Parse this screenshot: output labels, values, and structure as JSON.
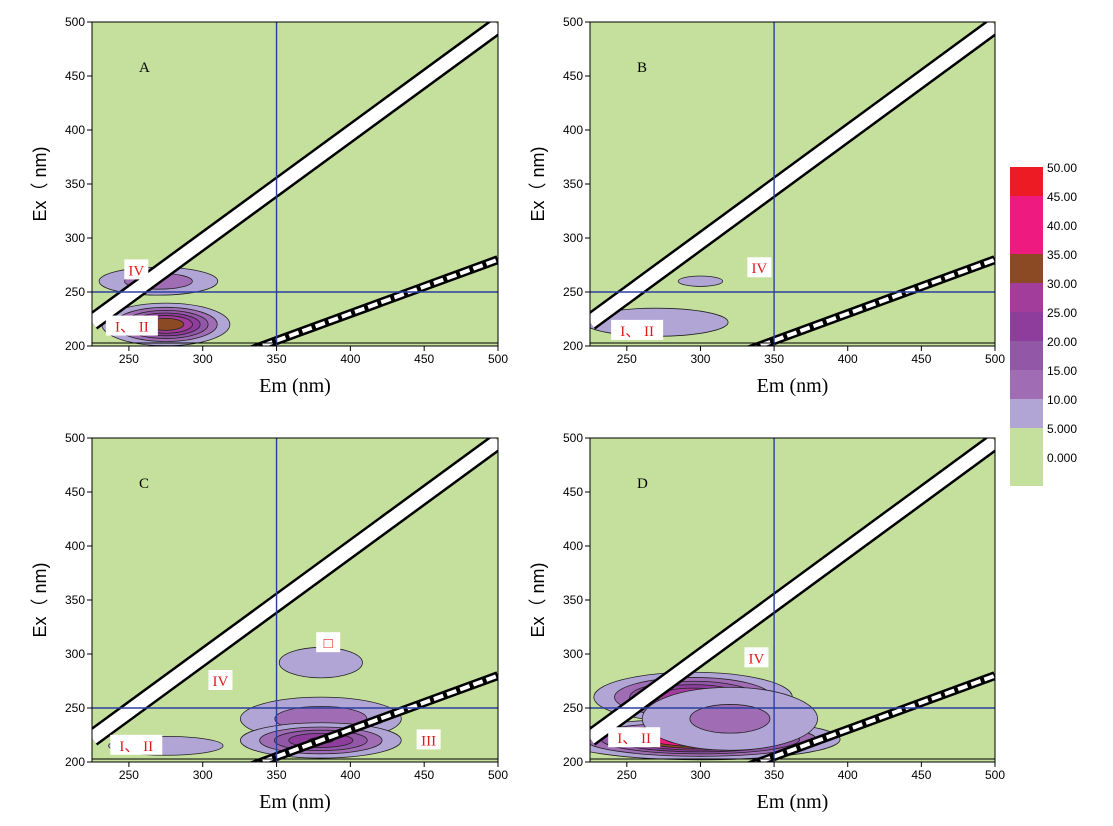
{
  "chart_data": [
    {
      "type": "contour",
      "panel_label": "A",
      "xlabel": "Em (nm)",
      "ylabel": "Ex（ nm)",
      "xlim": [
        225,
        500
      ],
      "ylim": [
        200,
        500
      ],
      "x_ticks": [
        "250",
        "300",
        "350",
        "400",
        "450",
        "500"
      ],
      "y_ticks": [
        "200",
        "250",
        "300",
        "350",
        "400",
        "450",
        "500"
      ],
      "divider_lines": {
        "em": 350,
        "ex": 250
      },
      "regions": [
        {
          "label": "IV",
          "em": 255,
          "ex": 270
        },
        {
          "label": "I、 II",
          "em": 252,
          "ex": 218
        }
      ],
      "peaks": [
        {
          "em": 275,
          "ex": 220,
          "level": 35,
          "sx": 22,
          "sy": 10
        },
        {
          "em": 270,
          "ex": 260,
          "level": 14,
          "sx": 28,
          "sy": 9
        }
      ]
    },
    {
      "type": "contour",
      "panel_label": "B",
      "xlabel": "Em (nm)",
      "ylabel": "Ex（ nm)",
      "xlim": [
        225,
        500
      ],
      "ylim": [
        200,
        500
      ],
      "x_ticks": [
        "250",
        "300",
        "350",
        "400",
        "450",
        "500"
      ],
      "y_ticks": [
        "200",
        "250",
        "300",
        "350",
        "400",
        "450",
        "500"
      ],
      "divider_lines": {
        "em": 350,
        "ex": 250
      },
      "regions": [
        {
          "label": "IV",
          "em": 340,
          "ex": 272
        },
        {
          "label": "I、 II",
          "em": 257,
          "ex": 214
        }
      ],
      "peaks": [
        {
          "em": 270,
          "ex": 222,
          "level": 9,
          "sx": 45,
          "sy": 12
        },
        {
          "em": 300,
          "ex": 260,
          "level": 6,
          "sx": 25,
          "sy": 8
        }
      ]
    },
    {
      "type": "contour",
      "panel_label": "C",
      "xlabel": "Em (nm)",
      "ylabel": "Ex（ nm)",
      "xlim": [
        225,
        500
      ],
      "ylim": [
        200,
        500
      ],
      "x_ticks": [
        "250",
        "300",
        "350",
        "400",
        "450",
        "500"
      ],
      "y_ticks": [
        "200",
        "250",
        "300",
        "350",
        "400",
        "450",
        "500"
      ],
      "divider_lines": {
        "em": 350,
        "ex": 250
      },
      "regions": [
        {
          "label": "□",
          "em": 385,
          "ex": 310
        },
        {
          "label": "IV",
          "em": 312,
          "ex": 275
        },
        {
          "label": "I、 II",
          "em": 255,
          "ex": 215
        },
        {
          "label": "III",
          "em": 453,
          "ex": 220
        }
      ],
      "peaks": [
        {
          "em": 380,
          "ex": 292,
          "level": 9,
          "sx": 26,
          "sy": 13
        },
        {
          "em": 380,
          "ex": 240,
          "level": 14,
          "sx": 38,
          "sy": 14
        },
        {
          "em": 380,
          "ex": 220,
          "level": 26,
          "sx": 30,
          "sy": 9
        },
        {
          "em": 275,
          "ex": 215,
          "level": 8,
          "sx": 40,
          "sy": 9
        }
      ]
    },
    {
      "type": "contour",
      "panel_label": "D",
      "xlabel": "Em (nm)",
      "ylabel": "Ex（ nm)",
      "xlim": [
        225,
        500
      ],
      "ylim": [
        200,
        500
      ],
      "x_ticks": [
        "250",
        "300",
        "350",
        "400",
        "450",
        "500"
      ],
      "y_ticks": [
        "200",
        "250",
        "300",
        "350",
        "400",
        "450",
        "500"
      ],
      "divider_lines": {
        "em": 350,
        "ex": 250
      },
      "regions": [
        {
          "label": "IV",
          "em": 338,
          "ex": 296
        },
        {
          "label": "I、 II",
          "em": 255,
          "ex": 222
        }
      ],
      "peaks": [
        {
          "em": 295,
          "ex": 260,
          "level": 32,
          "sx": 35,
          "sy": 12
        },
        {
          "em": 300,
          "ex": 221,
          "level": 46,
          "sx": 45,
          "sy": 9
        },
        {
          "em": 320,
          "ex": 240,
          "level": 12,
          "sx": 45,
          "sy": 22
        }
      ]
    }
  ],
  "colorbar": {
    "levels": [
      "50.00",
      "45.00",
      "40.00",
      "35.00",
      "30.00",
      "25.00",
      "20.00",
      "15.00",
      "10.00",
      "5.000",
      "0.000"
    ],
    "colors": [
      "#ed1c24",
      "#ed1c24",
      "#ee1a7f",
      "#ee1a7f",
      "#8b4a24",
      "#a33d9c",
      "#8e3d9c",
      "#9357a8",
      "#a06db5",
      "#b1a5d6",
      "#c5e09c"
    ]
  }
}
